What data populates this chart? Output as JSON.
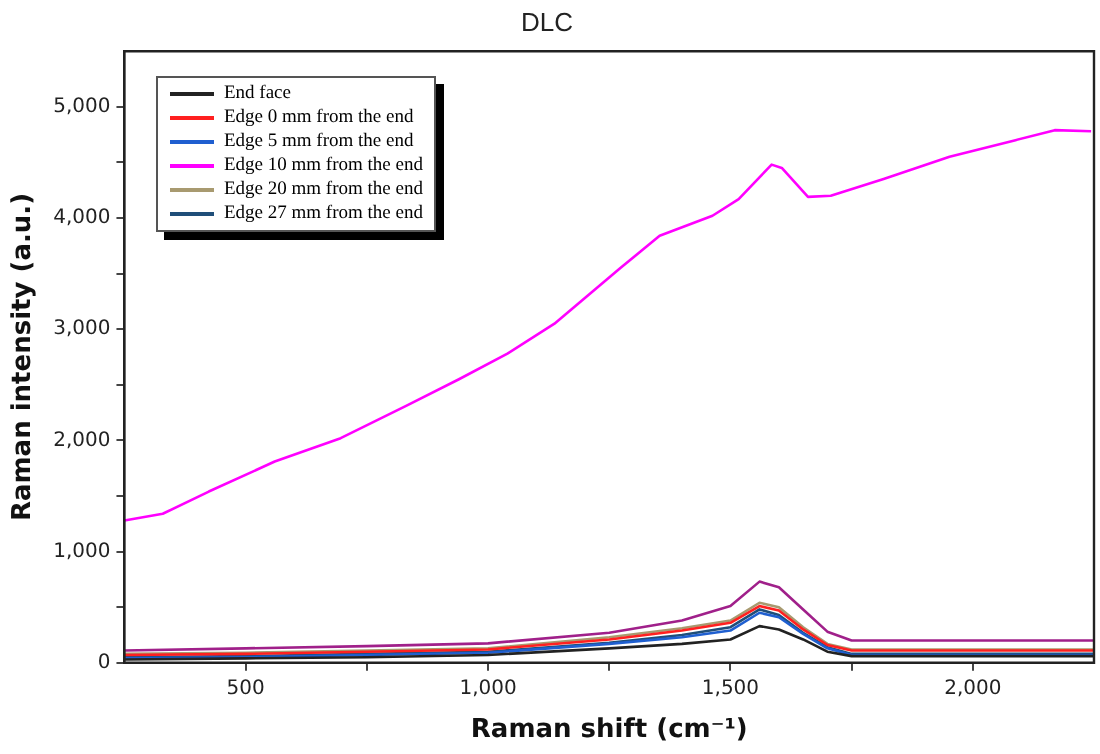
{
  "chart_data": {
    "type": "line",
    "title": "DLC",
    "xlabel": "Raman shift (cm⁻¹)",
    "ylabel": "Raman intensity (a.u.)",
    "xlim": [
      250,
      2250
    ],
    "xticks": [
      {
        "value": 500,
        "label": "500"
      },
      {
        "value": 750,
        "label": null
      },
      {
        "value": 1000,
        "label": "1,000"
      },
      {
        "value": 1250,
        "label": null
      },
      {
        "value": 1500,
        "label": "1,500"
      },
      {
        "value": 1750,
        "label": null
      },
      {
        "value": 2000,
        "label": "2,000"
      }
    ],
    "ylim": [
      0,
      5500
    ],
    "yticks": [
      {
        "value": 0,
        "label": "0"
      },
      {
        "value": 500,
        "label": null
      },
      {
        "value": 1000,
        "label": "1,000"
      },
      {
        "value": 1500,
        "label": null
      },
      {
        "value": 2000,
        "label": "2,000"
      },
      {
        "value": 2500,
        "label": null
      },
      {
        "value": 3000,
        "label": "3,000"
      },
      {
        "value": 3500,
        "label": null
      },
      {
        "value": 4000,
        "label": "4,000"
      },
      {
        "value": 4500,
        "label": null
      },
      {
        "value": 5000,
        "label": "5,000"
      }
    ],
    "grid": false,
    "legend": "top left",
    "marker": "none",
    "line_style": "solid",
    "x": [
      250,
      500,
      750,
      1000,
      1250,
      1400,
      1500,
      1560,
      1600,
      1650,
      1700,
      1750,
      2000,
      2250
    ],
    "series": [
      {
        "name": "End face",
        "color": "#222222",
        "values": [
          30,
          40,
          50,
          70,
          130,
          170,
          210,
          330,
          300,
          210,
          100,
          60,
          60,
          60
        ]
      },
      {
        "name": "Edge 0 mm from the end",
        "color": "#ff2020",
        "values": [
          70,
          80,
          100,
          120,
          210,
          290,
          360,
          510,
          470,
          300,
          160,
          110,
          110,
          110
        ]
      },
      {
        "name": "Edge 5 mm from the end",
        "color": "#1f5fd0",
        "values": [
          40,
          50,
          70,
          90,
          170,
          230,
          290,
          450,
          410,
          260,
          130,
          70,
          70,
          70
        ]
      },
      {
        "name": "Edge 10 mm from the end",
        "color": "#ff00ff",
        "x": [
          250,
          329,
          424,
          560,
          696,
          831,
          940,
          1040,
          1137,
          1273,
          1354,
          1463,
          1517,
          1585,
          1606,
          1660,
          1707,
          1816,
          1952,
          2088,
          2169,
          2244
        ],
        "values": [
          1280,
          1340,
          1540,
          1810,
          2020,
          2310,
          2550,
          2780,
          3050,
          3550,
          3840,
          4020,
          4170,
          4480,
          4450,
          4190,
          4200,
          4350,
          4550,
          4700,
          4790,
          4780
        ]
      },
      {
        "name": "Edge 20 mm from the end",
        "color": "#a89a70",
        "values": [
          80,
          90,
          110,
          130,
          230,
          310,
          380,
          540,
          500,
          320,
          170,
          120,
          120,
          120
        ]
      },
      {
        "name": "Edge 27 mm from the end",
        "color": "#1f4e79",
        "values": [
          50,
          60,
          80,
          100,
          180,
          250,
          320,
          480,
          430,
          270,
          140,
          80,
          80,
          80
        ]
      },
      {
        "color": "#a0208a",
        "values": [
          110,
          130,
          150,
          175,
          270,
          380,
          510,
          730,
          680,
          480,
          280,
          200,
          200,
          200
        ]
      }
    ]
  }
}
